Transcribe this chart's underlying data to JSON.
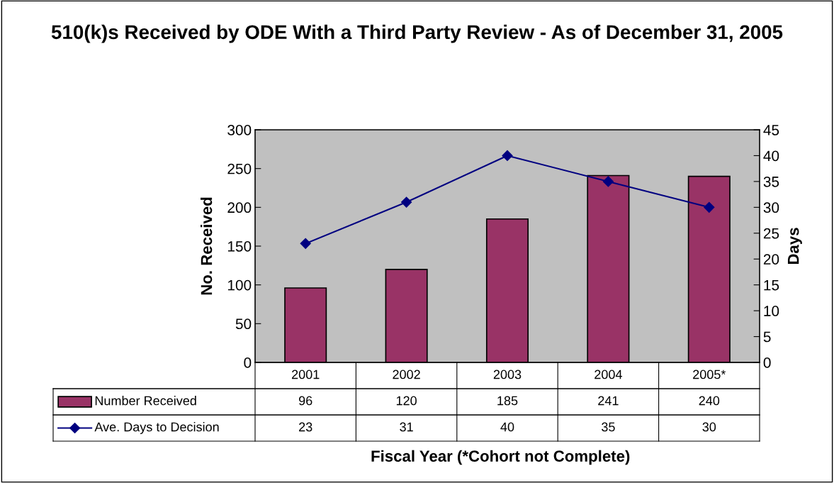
{
  "chart_data": {
    "type": "bar",
    "title": "510(k)s Received by ODE With a Third Party Review - As of December 31, 2005",
    "categories": [
      "2001",
      "2002",
      "2003",
      "2004",
      "2005*"
    ],
    "series": [
      {
        "name": "Number Received",
        "color": "#993366",
        "values": [
          96,
          120,
          185,
          241,
          240
        ]
      },
      {
        "name": "Ave. Days to Decision",
        "type": "line",
        "axis": "y2",
        "color": "#000080",
        "marker": "diamond",
        "values": [
          23,
          31,
          40,
          35,
          30
        ]
      }
    ],
    "xlabel": "Fiscal Year (*Cohort not Complete)",
    "ylabel": "No. Received",
    "y2label": "Days",
    "ylim": [
      0,
      300
    ],
    "yticks": [
      0,
      50,
      100,
      150,
      200,
      250,
      300
    ],
    "y2lim": [
      0,
      45
    ],
    "y2ticks": [
      0,
      5,
      10,
      15,
      20,
      25,
      30,
      35,
      40,
      45
    ],
    "data_labels": true,
    "legend": "bottom",
    "grid": false
  }
}
